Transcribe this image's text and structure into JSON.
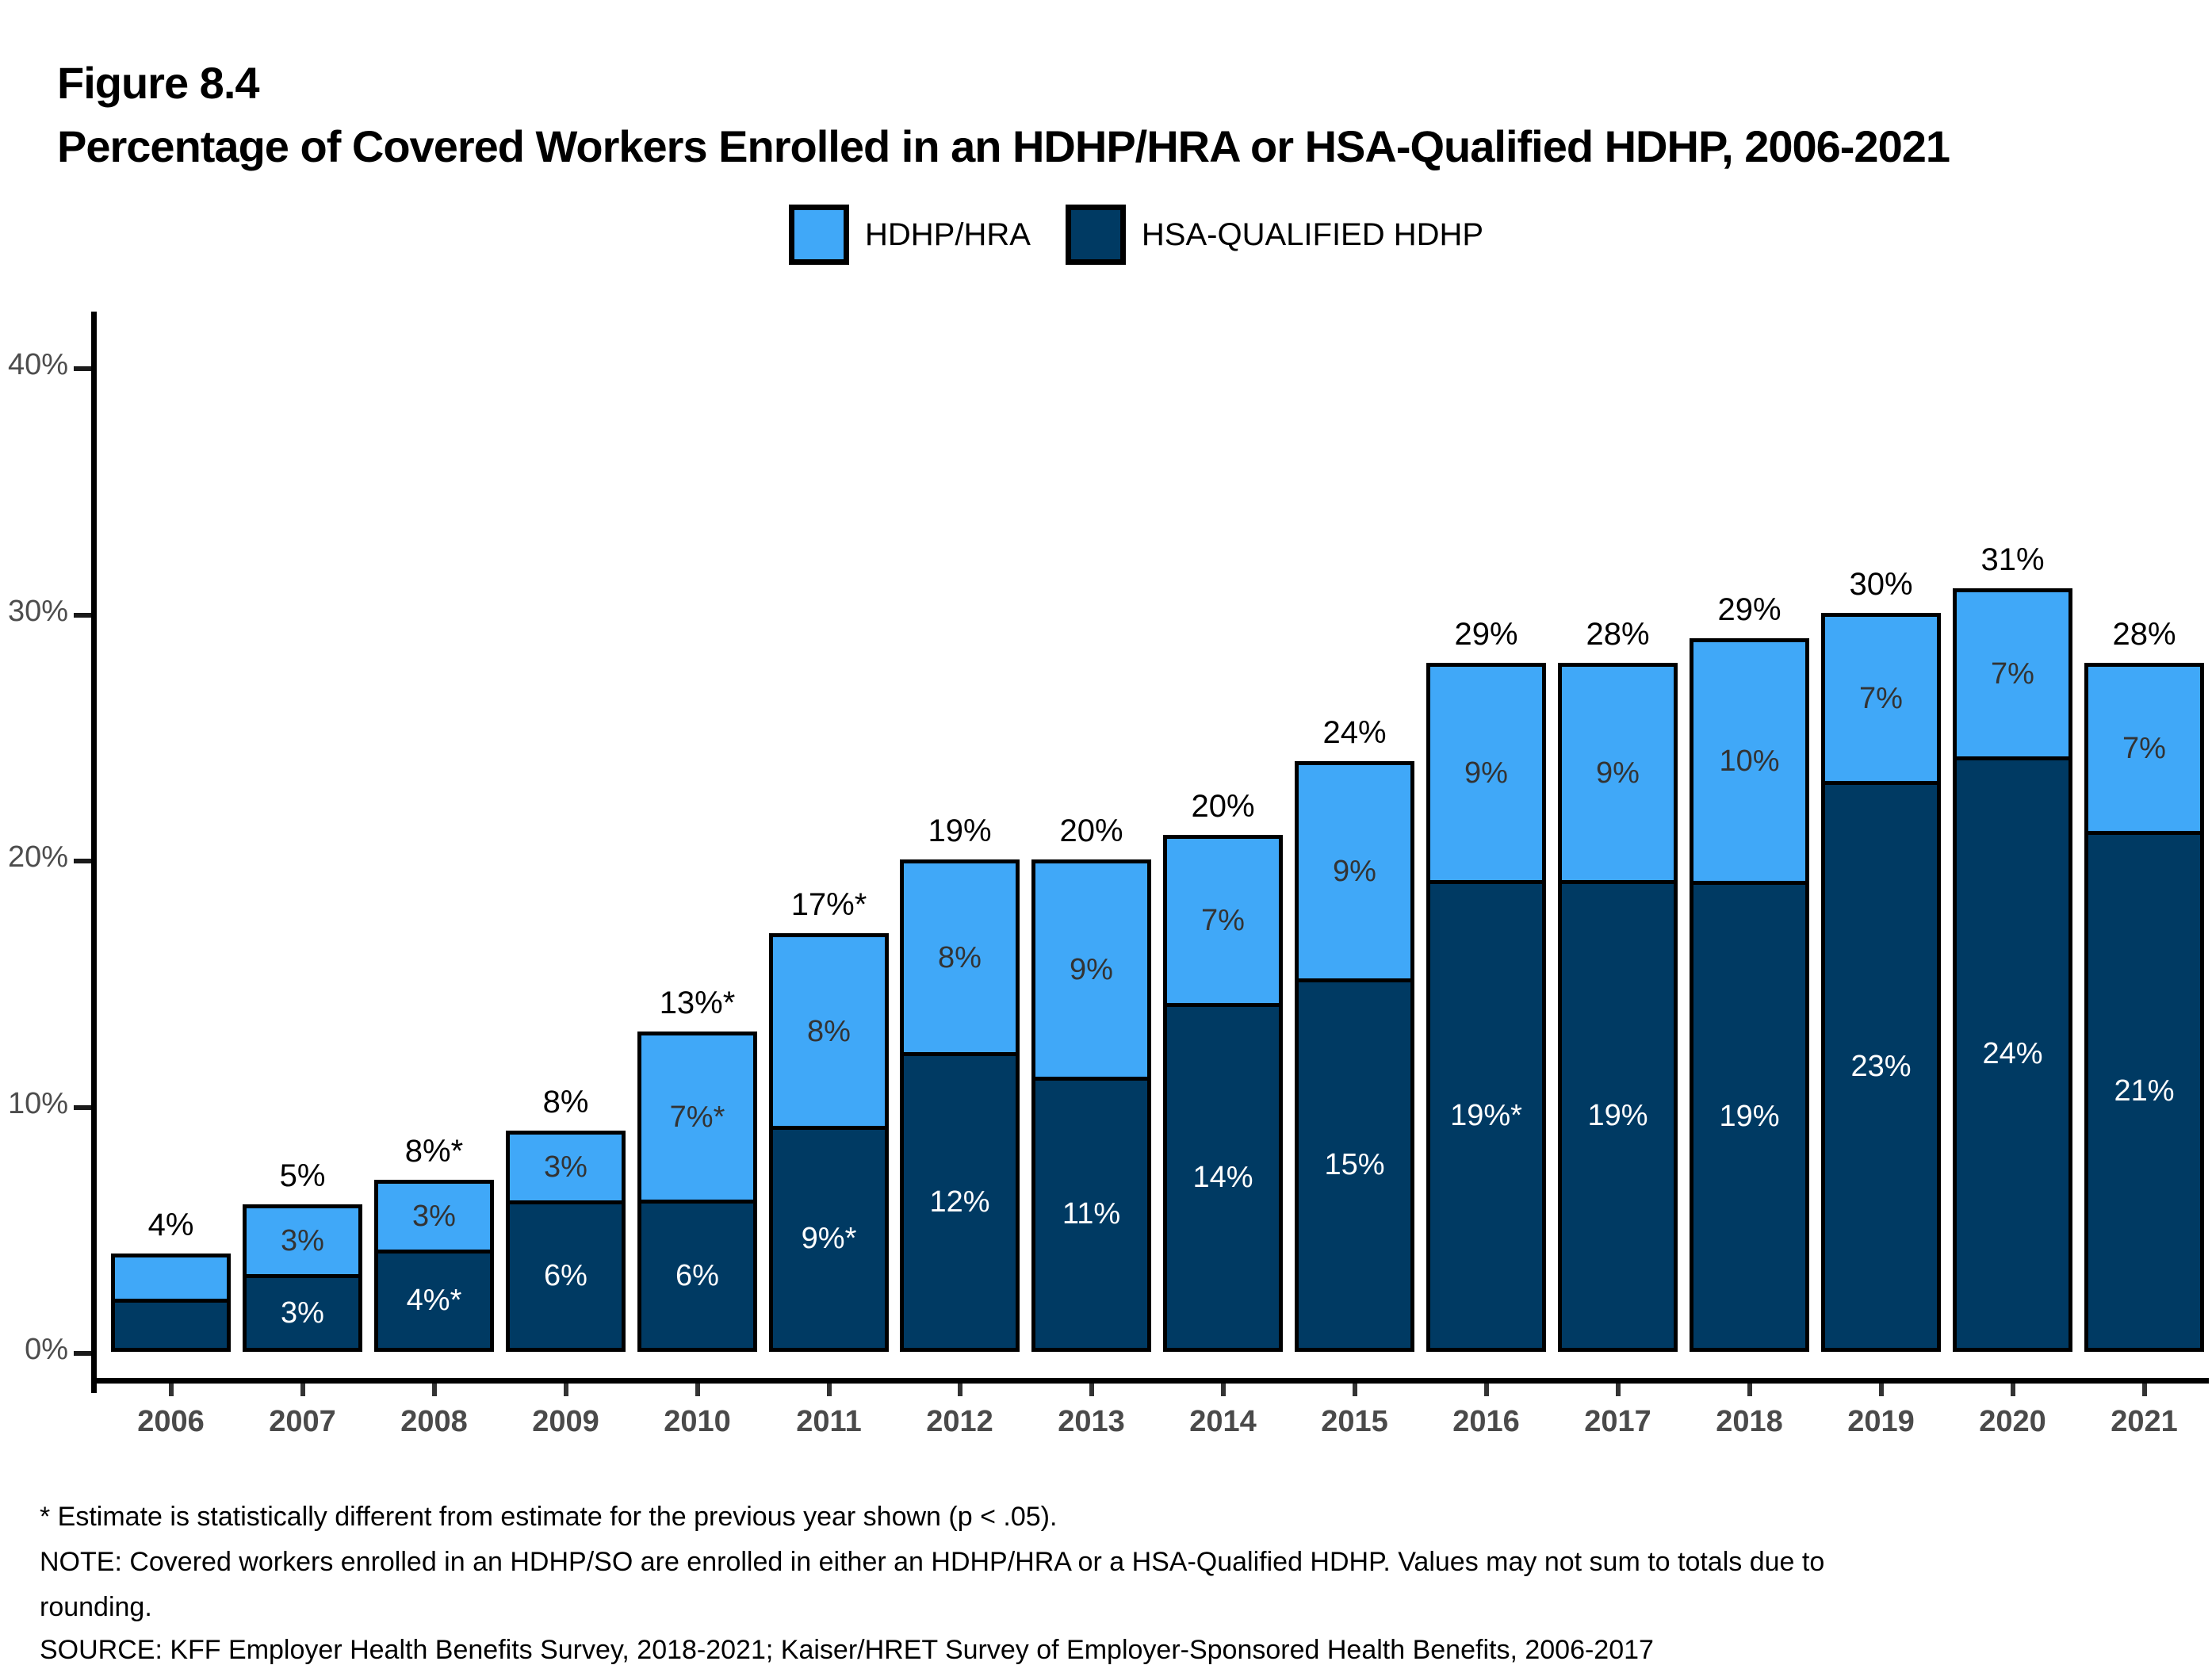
{
  "title": {
    "figure_label": "Figure 8.4",
    "text": "Percentage of Covered Workers Enrolled in an HDHP/HRA or HSA-Qualified HDHP, 2006-2021"
  },
  "legend": {
    "items": [
      {
        "label": "HDHP/HRA",
        "color": "#40A8F8"
      },
      {
        "label": "HSA-QUALIFIED HDHP",
        "color": "#003A63"
      }
    ]
  },
  "chart_data": {
    "type": "bar",
    "stacked": true,
    "title": "Percentage of Covered Workers Enrolled in an HDHP/HRA or HSA-Qualified HDHP, 2006-2021",
    "categories": [
      "2006",
      "2007",
      "2008",
      "2009",
      "2010",
      "2011",
      "2012",
      "2013",
      "2014",
      "2015",
      "2016",
      "2017",
      "2018",
      "2019",
      "2020",
      "2021"
    ],
    "series": [
      {
        "name": "HSA-QUALIFIED HDHP",
        "color": "#003A63",
        "values": [
          2,
          3,
          4,
          6,
          6,
          9,
          12,
          11,
          14,
          15,
          19,
          19,
          19,
          23,
          24,
          21
        ],
        "labels": [
          null,
          "3%",
          "4%*",
          "6%",
          "6%",
          "9%*",
          "12%",
          "11%",
          "14%",
          "15%",
          "19%*",
          "19%",
          "19%",
          "23%",
          "24%",
          "21%"
        ]
      },
      {
        "name": "HDHP/HRA",
        "color": "#40A8F8",
        "values": [
          2,
          3,
          3,
          3,
          7,
          8,
          8,
          9,
          7,
          9,
          9,
          9,
          10,
          7,
          7,
          7
        ],
        "labels": [
          null,
          "3%",
          "3%",
          "3%",
          "7%*",
          "8%",
          "8%",
          "9%",
          "7%",
          "9%",
          "9%",
          "9%",
          "10%",
          "7%",
          "7%",
          "7%"
        ]
      }
    ],
    "totals": [
      "4%",
      "5%",
      "8%*",
      "8%",
      "13%*",
      "17%*",
      "19%",
      "20%",
      "20%",
      "24%",
      "29%",
      "28%",
      "29%",
      "30%",
      "31%",
      "28%"
    ],
    "y_ticks": {
      "values": [
        0,
        10,
        20,
        30,
        40
      ],
      "labels": [
        "0%",
        "10%",
        "20%",
        "30%",
        "40%"
      ]
    },
    "ylim": [
      0,
      42
    ],
    "grid": false,
    "legend_position": "top"
  },
  "footnotes": [
    "* Estimate is statistically different from estimate for the previous year shown (p < .05).",
    "NOTE: Covered workers enrolled in an HDHP/SO are enrolled in either an HDHP/HRA or a HSA-Qualified HDHP. Values may not sum to totals due to",
    "rounding.",
    "SOURCE: KFF Employer Health Benefits Survey, 2018-2021; Kaiser/HRET Survey of Employer-Sponsored Health Benefits, 2006-2017"
  ],
  "colors": {
    "hdhp_hra": "#40A8F8",
    "hsa_qualified": "#003A63",
    "axis": "#000000",
    "tick_label": "#4d4d4d",
    "year_label": "#4a4a4a"
  }
}
